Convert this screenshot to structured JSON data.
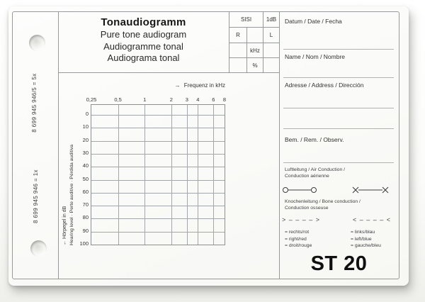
{
  "card": {
    "left_strip": {
      "code_top": "8 699 945 946/5 = 5x",
      "code_bottom": "8 699 945 946 = 1x"
    },
    "header": {
      "titles": [
        "Tonaudiogramm",
        "Pure tone audiogram",
        "Audiogramme tonal",
        "Audiograma tonal"
      ],
      "sisi_table": {
        "sisi": "SISI",
        "db": "1dB",
        "r": "R",
        "l": "L",
        "khz": "kHz",
        "percent": "%"
      }
    },
    "right_panel": {
      "fields": [
        "Datum / Date / Fecha",
        "Name / Nom / Nombre",
        "Adresse / Address / Dirección",
        "Bem. / Rem. / Observ."
      ],
      "air": {
        "label_line1": "Luftleitung / Air Conduction /",
        "label_line2": "Conduction aérienne"
      },
      "bone": {
        "label_line1": "Knochenleitung / Bone conduction /",
        "label_line2": "Conduction osseuse",
        "right_symbol": "> – – – – >",
        "left_symbol": "< – – – – <"
      },
      "legend": {
        "right_lines": [
          "= rechts/rot",
          "= right/red",
          "= droit/rouge"
        ],
        "left_lines": [
          "= links/blau",
          "= left/blue",
          "= gauche/bleu"
        ]
      },
      "form_code": "ST 20"
    },
    "colors": {
      "paper": "#fbfbf9",
      "ink": "#2a2a2a",
      "rule_line": "#97999b"
    }
  },
  "chart_data": {
    "type": "line",
    "title": "",
    "xlabel": "Frequenz in kHz",
    "xlabel_arrow": "→",
    "ylabel_line1": "← Hörpegel in dB",
    "ylabel_line2": "Hearing level · Perte auditive · Pérdida auditiva",
    "x_scale": "log2",
    "x_ticks": [
      0.25,
      0.5,
      1,
      2,
      3,
      4,
      6,
      8
    ],
    "x_tick_labels": [
      "0,25",
      "0,5",
      "1",
      "2",
      "3",
      "4",
      "6",
      "8"
    ],
    "y_ticks": [
      0,
      10,
      20,
      30,
      40,
      50,
      60,
      70,
      80,
      90,
      100
    ],
    "ylim": [
      0,
      100
    ],
    "y_inverted": true,
    "grid": true,
    "legend_position": "none",
    "series": []
  }
}
